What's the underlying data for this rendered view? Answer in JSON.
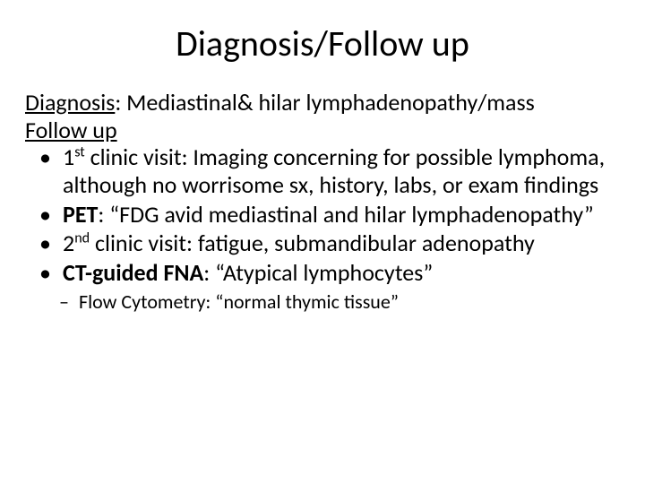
{
  "typography": {
    "font_family": "Calibri",
    "title_fontsize_pt": 40,
    "body_fontsize_pt": 26,
    "sub_fontsize_pt": 22,
    "line_height": 1.18
  },
  "colors": {
    "background": "#ffffff",
    "text": "#000000"
  },
  "slide": {
    "title": "Diagnosis/Follow up",
    "line1_label": "Diagnosis",
    "line1_rest": ": Mediastinal& hilar lymphadenopathy/mass",
    "line2_label": "Follow up",
    "bullets": [
      {
        "prefix": "1",
        "sup": "st",
        "after_sup": " clinic visit: Imaging concerning for possible lymphoma, although no worrisome sx, history, labs, or exam findings"
      },
      {
        "bold": "PET",
        "rest": ": “FDG avid mediastinal and hilar lymphadenopathy”"
      },
      {
        "prefix": "2",
        "sup": "nd",
        "after_sup": " clinic visit: fatigue, submandibular adenopathy"
      },
      {
        "bold": "CT-guided FNA",
        "rest": ": “Atypical lymphocytes”"
      }
    ],
    "sub_bullet": "Flow Cytometry: “normal thymic tissue”"
  }
}
